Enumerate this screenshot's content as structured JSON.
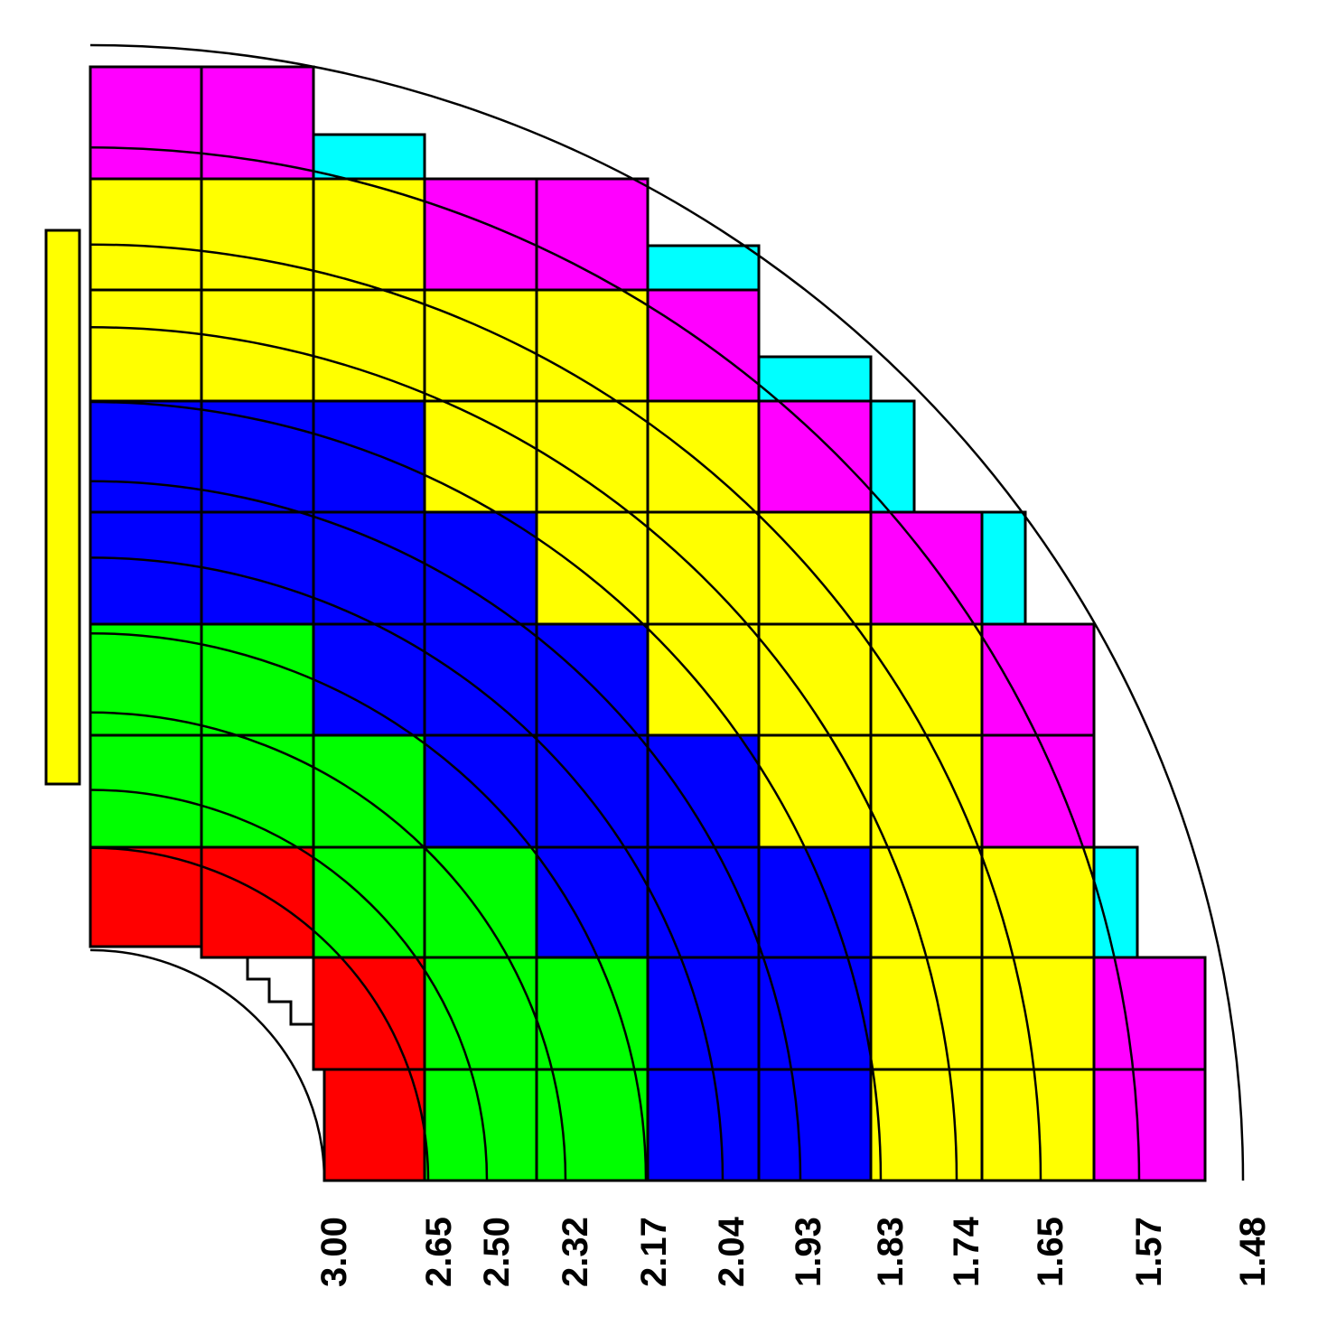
{
  "colors": {
    "yellow": "#ffff00",
    "magenta": "#ff00ff",
    "cyan": "#00ffff",
    "blue": "#0000ff",
    "green": "#00ff00",
    "red": "#ff0000"
  },
  "eta_labels": [
    "3.00",
    "2.65",
    "2.50",
    "2.32",
    "2.17",
    "2.04",
    "1.93",
    "1.83",
    "1.74",
    "1.65",
    "1.57",
    "1.48"
  ]
}
